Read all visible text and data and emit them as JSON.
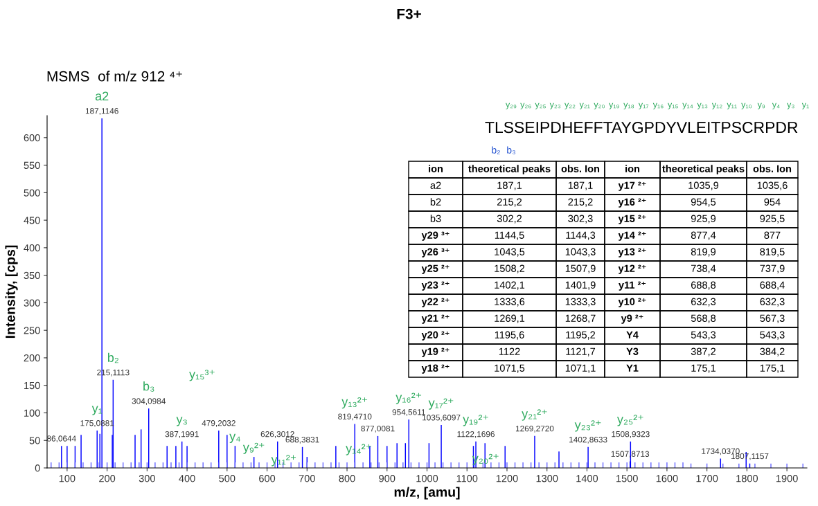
{
  "chart_data": {
    "type": "bar",
    "title": "F3+",
    "subtitle": "MSMS  of m/z 912 ⁴⁺",
    "xlabel": "m/z, [amu]",
    "ylabel": "Intensity, [cps]",
    "xlim": [
      50,
      1950
    ],
    "xticks": [
      100,
      200,
      300,
      400,
      500,
      600,
      700,
      800,
      900,
      1000,
      1100,
      1200,
      1300,
      1400,
      1500,
      1600,
      1700,
      1800,
      1900
    ],
    "ylim": [
      0,
      640
    ],
    "yticks": [
      0,
      50,
      100,
      150,
      200,
      250,
      300,
      350,
      400,
      450,
      500,
      550,
      600
    ],
    "series": [
      {
        "color": "#0000ff",
        "x": [
          86.0644,
          100,
          120,
          135,
          175.0881,
          182,
          187.1146,
          213,
          215.1113,
          270,
          285,
          304.0984,
          350,
          372,
          387.1991,
          400,
          479.2032,
          500,
          520,
          567.3,
          626.3012,
          688.3831,
          700,
          772,
          819.471,
          857,
          877.0081,
          900,
          925,
          946,
          954.5611,
          1005,
          1035.6097,
          1116,
          1122.1696,
          1145,
          1195.2,
          1269.272,
          1330,
          1402.8633,
          1507.8713,
          1508.9323,
          1734.037,
          1798,
          1807.1157
        ],
        "values": [
          40,
          40,
          40,
          60,
          68,
          62,
          635,
          60,
          160,
          60,
          70,
          108,
          40,
          40,
          48,
          40,
          68,
          60,
          40,
          20,
          48,
          38,
          20,
          40,
          80,
          40,
          58,
          40,
          45,
          45,
          88,
          45,
          78,
          40,
          48,
          45,
          40,
          58,
          30,
          38,
          12,
          48,
          17,
          29,
          8
        ],
        "value_labels": [
          "86,0644",
          null,
          null,
          null,
          "175,0881",
          null,
          "187,1146",
          null,
          "215,1113",
          null,
          null,
          "304,0984",
          null,
          null,
          "387,1991",
          null,
          "479,2032",
          null,
          null,
          null,
          "626,3012",
          "688,3831",
          null,
          null,
          "819,4710",
          null,
          "877,0081",
          null,
          null,
          null,
          "954,5611",
          null,
          "1035,6097",
          null,
          "1122,1696",
          null,
          null,
          "1269,2720",
          null,
          "1402,8633",
          "1507,8713",
          "1508,9323",
          "1734,0370",
          null,
          "1807,1157"
        ]
      },
      {
        "color": "#6a6aff",
        "x": [
          60,
          80,
          100,
          120,
          140,
          160,
          180,
          200,
          220,
          240,
          260,
          280,
          300,
          320,
          340,
          360,
          380,
          400,
          420,
          440,
          460,
          480,
          500,
          520,
          540,
          560,
          580,
          600,
          620,
          640,
          660,
          680,
          700,
          720,
          740,
          760,
          780,
          800,
          820,
          840,
          860,
          880,
          900,
          920,
          940,
          960,
          980,
          1000,
          1020,
          1040,
          1060,
          1080,
          1100,
          1120,
          1140,
          1160,
          1180,
          1200,
          1220,
          1240,
          1260,
          1280,
          1300,
          1320,
          1340,
          1360,
          1380,
          1400,
          1420,
          1440,
          1460,
          1480,
          1500,
          1520,
          1540,
          1560,
          1580,
          1600,
          1620,
          1640,
          1660,
          1700,
          1740,
          1780,
          1820,
          1860,
          1900,
          1940
        ],
        "values": [
          10,
          10,
          10,
          10,
          10,
          10,
          10,
          10,
          10,
          10,
          10,
          10,
          10,
          10,
          10,
          10,
          10,
          10,
          10,
          10,
          10,
          10,
          10,
          10,
          10,
          10,
          10,
          10,
          10,
          10,
          10,
          10,
          10,
          10,
          10,
          10,
          10,
          10,
          10,
          10,
          10,
          10,
          10,
          10,
          10,
          10,
          10,
          10,
          10,
          10,
          10,
          10,
          10,
          10,
          10,
          10,
          10,
          10,
          10,
          10,
          10,
          10,
          10,
          10,
          10,
          10,
          10,
          10,
          10,
          10,
          10,
          10,
          10,
          10,
          10,
          10,
          10,
          10,
          10,
          10,
          8,
          8,
          8,
          8,
          8,
          8,
          8,
          8
        ]
      }
    ],
    "annotations": [
      "TLSSEIPDHEFFTAYGPDYVLEITPSCRPDR",
      "y₂₉",
      "y₂₆",
      "y₂₅",
      "y₂₃",
      "y₂₂",
      "y₂₁",
      "y₂₀",
      "y₁₉",
      "y₁₈",
      "y₁₇",
      "y₁₆",
      "y₁₅",
      "y₁₄",
      "y₁₃",
      "y₁₂",
      "y₁₁",
      "y₁₀",
      "y₉",
      "y₄",
      "y₃",
      "y₁",
      "b₂",
      "b₃",
      "y₁₅³⁺",
      "ion",
      "theoretical peaks",
      "obs. Ion",
      "ion",
      "theoretical peaks",
      "obs. Ion",
      "a2",
      "187,1",
      "187,1",
      "y17 ²⁺",
      "1035,9",
      "1035,6",
      "b2",
      "215,2",
      "215,2",
      "y16 ²⁺",
      "954,5",
      "954",
      "b3",
      "302,2",
      "302,3",
      "y15 ²⁺",
      "925,9",
      "925,5",
      "y29 ³⁺",
      "1144,5",
      "1144,3",
      "y14 ²⁺",
      "877,4",
      "877",
      "y26 ³⁺",
      "1043,5",
      "1043,3",
      "y13 ²⁺",
      "819,9",
      "819,5",
      "y25 ²⁺",
      "1508,2",
      "1507,9",
      "y12 ²⁺",
      "738,4",
      "737,9",
      "y23 ²⁺",
      "1402,1",
      "1401,9",
      "y11 ²⁺",
      "688,8",
      "688,4",
      "y22 ²⁺",
      "1333,6",
      "1333,3",
      "y10 ²⁺",
      "632,3",
      "632,3",
      "y21 ²⁺",
      "1269,1",
      "1268,7",
      "y9 ²⁺",
      "568,8",
      "567,3",
      "y20 ²⁺",
      "1195,6",
      "1195,2",
      "Y4",
      "543,3",
      "543,3",
      "y19 ²⁺",
      "1122",
      "1121,7",
      "Y3",
      "387,2",
      "384,2",
      "y18 ²⁺",
      "1071,5",
      "1071,1",
      "Y1",
      "175,1",
      "175,1",
      {
        "text": "a2",
        "x": 187.1146,
        "y": 635
      },
      {
        "text": "b₂",
        "x": 215.1113,
        "y": 160
      },
      {
        "text": "b₃",
        "x": 304.0984,
        "y": 108
      },
      {
        "text": "y₁",
        "x": 175.0881,
        "y": 68
      },
      {
        "text": "y₃",
        "x": 387.1991,
        "y": 48
      },
      {
        "text": "y₄",
        "x": 520,
        "y": 40
      },
      {
        "text": "y₉²⁺",
        "x": 567.3,
        "y": 20
      },
      {
        "text": "y₁₁²⁺",
        "x": 688.3831,
        "y": 38
      },
      {
        "text": "y₁₃²⁺",
        "x": 819.471,
        "y": 80
      },
      {
        "text": "y₁₄²⁺",
        "x": 877.0081,
        "y": 58
      },
      {
        "text": "y₁₆²⁺",
        "x": 954.5611,
        "y": 88
      },
      {
        "text": "y₁₇²⁺",
        "x": 1035.6097,
        "y": 78
      },
      {
        "text": "y₁₉²⁺",
        "x": 1122.1696,
        "y": 48
      },
      {
        "text": "y₂₀²⁺",
        "x": 1195.2,
        "y": 40
      },
      {
        "text": "y₂₁²⁺",
        "x": 1269.272,
        "y": 58
      },
      {
        "text": "y₂₃²⁺",
        "x": 1402.8633,
        "y": 38
      },
      {
        "text": "y₂₅²⁺",
        "x": 1508.9323,
        "y": 48
      }
    ]
  }
}
